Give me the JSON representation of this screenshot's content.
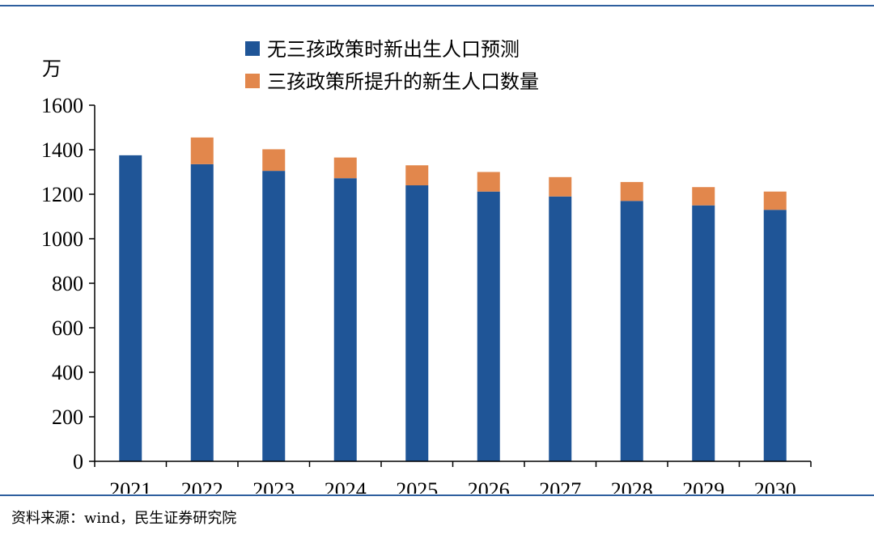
{
  "colors": {
    "base": "#1f5597",
    "increase": "#e2874c",
    "rule": "#2e5f9e"
  },
  "source": "资料来源：wind，民生证券研究院",
  "chart_data": {
    "type": "bar",
    "stacked": true,
    "unit_label": "万",
    "categories": [
      "2021",
      "2022",
      "2023",
      "2024",
      "2025",
      "2026",
      "2027",
      "2028",
      "2029",
      "2030"
    ],
    "series": [
      {
        "name": "无三孩政策时新出生人口预测",
        "color": "#1f5597",
        "values": [
          1375,
          1335,
          1305,
          1272,
          1240,
          1212,
          1190,
          1170,
          1150,
          1130
        ]
      },
      {
        "name": "三孩政策所提升的新生人口数量",
        "color": "#e2874c",
        "values": [
          0,
          120,
          97,
          93,
          90,
          88,
          87,
          85,
          82,
          82
        ]
      }
    ],
    "ylim": [
      0,
      1600
    ],
    "yticks": [
      0,
      200,
      400,
      600,
      800,
      1000,
      1200,
      1400,
      1600
    ],
    "legend_position": "top-center",
    "grid": false
  }
}
